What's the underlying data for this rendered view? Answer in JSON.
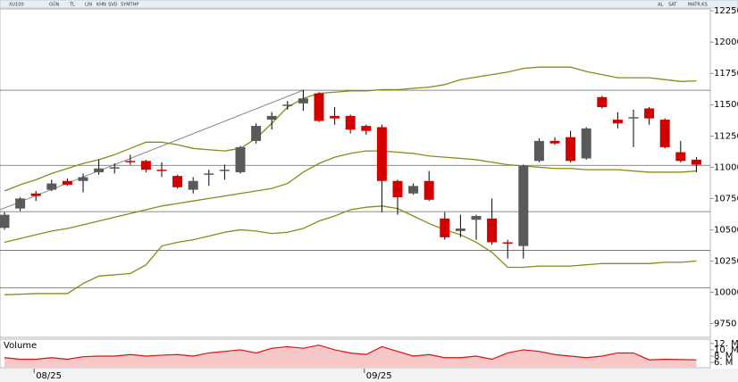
{
  "toolbar": [
    "XU100",
    "GÜN",
    "TL",
    "LIN",
    "KHN",
    "SVD",
    "SYMTHP",
    "AL",
    "SAT",
    "MATR.KS"
  ],
  "chart_data": [
    {
      "type": "candlestick",
      "categories": [
        null,
        null,
        "08/25",
        null,
        null,
        null,
        null,
        null,
        null,
        null,
        null,
        null,
        null,
        null,
        null,
        null,
        null,
        null,
        null,
        null,
        null,
        null,
        null,
        "09/25",
        null,
        null,
        null,
        null,
        null,
        null,
        null,
        null,
        null,
        null,
        null,
        null,
        null,
        null,
        null,
        null,
        null,
        null,
        null,
        null,
        null
      ],
      "open": [
        10515,
        10670,
        10790,
        10820,
        10890,
        10890,
        10960,
        10990,
        11050,
        11050,
        10980,
        10930,
        10820,
        10940,
        10970,
        10960,
        11210,
        11380,
        11490,
        11510,
        11590,
        11410,
        11410,
        11330,
        11320,
        10890,
        10790,
        10890,
        10590,
        10490,
        10580,
        10590,
        10400,
        10370,
        11050,
        11210,
        11240,
        11070,
        11560,
        11380,
        11390,
        11470,
        11380,
        11120,
        11060
      ],
      "high": [
        10640,
        10760,
        10810,
        10900,
        10910,
        10950,
        11060,
        11030,
        11100,
        11060,
        11040,
        10940,
        10920,
        10980,
        11020,
        11170,
        11350,
        11440,
        11530,
        11620,
        11600,
        11480,
        11420,
        11340,
        11340,
        10900,
        10870,
        10970,
        10640,
        10620,
        10620,
        10750,
        10420,
        11020,
        11230,
        11240,
        11290,
        11320,
        11570,
        11440,
        11460,
        11480,
        11390,
        11210,
        11080
      ],
      "low": [
        10500,
        10650,
        10730,
        10810,
        10850,
        10800,
        10940,
        10950,
        11020,
        10960,
        10920,
        10830,
        10790,
        10850,
        10900,
        10950,
        11190,
        11300,
        11460,
        11450,
        11360,
        11340,
        11270,
        11260,
        10640,
        10620,
        10780,
        10730,
        10420,
        10440,
        10420,
        10380,
        10270,
        10270,
        11040,
        11180,
        11040,
        11060,
        11470,
        11310,
        11160,
        11340,
        11150,
        11040,
        10960
      ],
      "close": [
        10620,
        10750,
        10770,
        10870,
        10860,
        10920,
        10990,
        11000,
        11045,
        10980,
        10970,
        10840,
        10890,
        10950,
        10980,
        11160,
        11330,
        11410,
        11500,
        11550,
        11370,
        11390,
        11300,
        11290,
        10890,
        10760,
        10850,
        10740,
        10440,
        10510,
        10610,
        10400,
        10390,
        11010,
        11210,
        11190,
        11050,
        11310,
        11480,
        11350,
        11400,
        11390,
        11160,
        11050,
        11020
      ],
      "up_color": "#5a5a5a",
      "down_color": "#d40000",
      "bands": [
        {
          "color": "#8c8a14",
          "values": [
            10810,
            10860,
            10900,
            10950,
            10990,
            11030,
            11060,
            11100,
            11150,
            11200,
            11200,
            11180,
            11150,
            11140,
            11130,
            11150,
            11230,
            11350,
            11480,
            11550,
            11590,
            11600,
            11610,
            11610,
            11620,
            11620,
            11630,
            11640,
            11660,
            11700,
            11720,
            11740,
            11760,
            11790,
            11800,
            11800,
            11800,
            11765,
            11740,
            11715,
            11715,
            11715,
            11700,
            11685,
            11690
          ]
        },
        {
          "color": "#8c8a14",
          "values": [
            10400,
            10430,
            10460,
            10490,
            10510,
            10540,
            10570,
            10600,
            10630,
            10660,
            10690,
            10710,
            10730,
            10750,
            10770,
            10790,
            10810,
            10830,
            10870,
            10960,
            11030,
            11080,
            11110,
            11130,
            11130,
            11120,
            11110,
            11090,
            11080,
            11070,
            11060,
            11040,
            11020,
            11010,
            11000,
            10990,
            10990,
            10980,
            10980,
            10980,
            10970,
            10960,
            10960,
            10960,
            10970
          ]
        },
        {
          "color": "#8c8a14",
          "values": [
            9980,
            9985,
            9990,
            9990,
            9990,
            10070,
            10130,
            10140,
            10150,
            10220,
            10370,
            10400,
            10420,
            10450,
            10480,
            10500,
            10490,
            10470,
            10480,
            10510,
            10570,
            10610,
            10660,
            10680,
            10690,
            10670,
            10610,
            10550,
            10500,
            10460,
            10400,
            10320,
            10200,
            10200,
            10210,
            10210,
            10210,
            10220,
            10230,
            10230,
            10230,
            10230,
            10240,
            10240,
            10250
          ]
        }
      ],
      "levels": [
        11615,
        11015,
        10645,
        10335,
        10035
      ],
      "trendline": {
        "x": [
          0,
          19
        ],
        "y": [
          10660,
          11615
        ]
      },
      "ylim": [
        9640,
        12265
      ],
      "yticks": [
        9750,
        10000,
        10250,
        10500,
        10750,
        11000,
        11250,
        11500,
        11750,
        12000,
        12250
      ]
    },
    {
      "type": "area",
      "title": "Volume",
      "color": "#e01010",
      "fill": "#f8c8c8",
      "values": [
        7.5,
        7,
        7,
        7.5,
        7,
        7.8,
        8,
        8,
        8.5,
        8,
        8.3,
        8.5,
        8,
        9,
        9.5,
        10,
        9,
        10.5,
        11,
        10.5,
        11.5,
        10,
        9,
        8.5,
        11,
        9.5,
        8,
        8.5,
        7.5,
        7.5,
        8,
        7,
        9,
        10,
        9.5,
        8.5,
        8,
        7.5,
        8,
        9,
        9,
        6.8,
        7,
        6.9,
        6.8
      ],
      "ylim": [
        4.3,
        13.4
      ],
      "yticks": [
        {
          "value": 12,
          "label": "12. M"
        },
        {
          "value": 10,
          "label": "10. M"
        },
        {
          "value": 8,
          "label": "8. M"
        },
        {
          "value": 6,
          "label": "6. M"
        }
      ]
    }
  ]
}
